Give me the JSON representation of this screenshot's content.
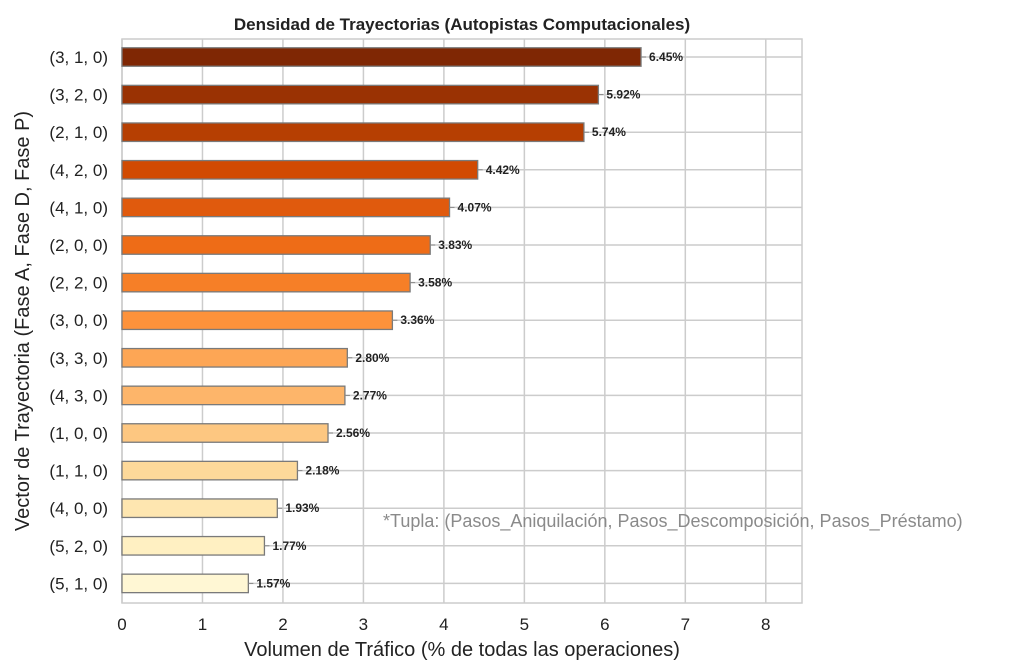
{
  "chart_data": {
    "type": "bar",
    "orientation": "horizontal",
    "title": "Densidad de Trayectorias (Autopistas Computacionales)",
    "xlabel": "Volumen de Tráfico (% de todas las operaciones)",
    "ylabel": "Vector de Trayectoria (Fase A, Fase D, Fase P)",
    "xlim": [
      0,
      8.45
    ],
    "xticks": [
      "0",
      "1",
      "2",
      "3",
      "4",
      "5",
      "6",
      "7",
      "8"
    ],
    "grid": true,
    "categories": [
      "(3, 1, 0)",
      "(3, 2, 0)",
      "(2, 1, 0)",
      "(4, 2, 0)",
      "(4, 1, 0)",
      "(2, 0, 0)",
      "(2, 2, 0)",
      "(3, 0, 0)",
      "(3, 3, 0)",
      "(4, 3, 0)",
      "(1, 0, 0)",
      "(1, 1, 0)",
      "(4, 0, 0)",
      "(5, 2, 0)",
      "(5, 1, 0)"
    ],
    "values": [
      6.45,
      5.92,
      5.74,
      4.42,
      4.07,
      3.83,
      3.58,
      3.36,
      2.8,
      2.77,
      2.56,
      2.18,
      1.93,
      1.77,
      1.57
    ],
    "data_labels": [
      "6.45%",
      "5.92%",
      "5.74%",
      "4.42%",
      "4.07%",
      "3.83%",
      "3.58%",
      "3.36%",
      "2.80%",
      "2.77%",
      "2.56%",
      "2.18%",
      "1.93%",
      "1.77%",
      "1.57%"
    ],
    "colors": [
      "#7f2704",
      "#9a3203",
      "#b63f02",
      "#d14a02",
      "#e05a0d",
      "#ee6c17",
      "#f67f27",
      "#fd923b",
      "#fda655",
      "#fdb56a",
      "#fdc781",
      "#fdd99a",
      "#fee6b0",
      "#fff0c2",
      "#fff7d4"
    ],
    "annotation": "*Tupla: (Pasos_Aniquilación, Pasos_Descomposición, Pasos_Préstamo)"
  }
}
